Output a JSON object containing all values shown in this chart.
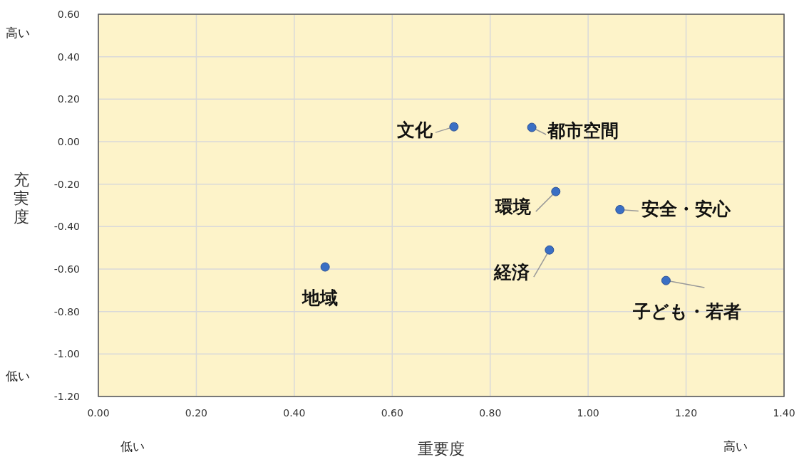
{
  "chart_data": {
    "type": "scatter",
    "xlabel": "重要度",
    "ylabel": "充実度",
    "x": [
      0.726,
      0.885,
      0.934,
      1.065,
      0.921,
      0.463,
      1.159
    ],
    "values": [
      0.07,
      0.067,
      -0.235,
      -0.32,
      -0.51,
      -0.59,
      -0.654
    ],
    "color": "#3a6fc4",
    "marker": "circle",
    "grid": true,
    "xlim": [
      0,
      1.4
    ],
    "xticks": [
      {
        "value": 0,
        "label": "0.00"
      },
      {
        "value": 0.2,
        "label": "0.20"
      },
      {
        "value": 0.4,
        "label": "0.40"
      },
      {
        "value": 0.6,
        "label": "0.60"
      },
      {
        "value": 0.8,
        "label": "0.80"
      },
      {
        "value": 1,
        "label": "1.00"
      },
      {
        "value": 1.2,
        "label": "1.20"
      },
      {
        "value": 1.4,
        "label": "1.40"
      }
    ],
    "ylim": [
      -1.2,
      0.6
    ],
    "yticks": [
      {
        "value": -1.2,
        "label": "-1.20"
      },
      {
        "value": -1,
        "label": "-1.00"
      },
      {
        "value": -0.8,
        "label": "-0.80"
      },
      {
        "value": -0.6,
        "label": "-0.60"
      },
      {
        "value": -0.4,
        "label": "-0.40"
      },
      {
        "value": -0.2,
        "label": "-0.20"
      },
      {
        "value": 0,
        "label": "0.00"
      },
      {
        "value": 0.2,
        "label": "0.20"
      },
      {
        "value": 0.4,
        "label": "0.40"
      },
      {
        "value": 0.6,
        "label": "0.60"
      }
    ],
    "annotations": [
      {
        "text": "文化",
        "x": 0.726,
        "y": 0.07
      },
      {
        "text": "都市空間",
        "x": 0.885,
        "y": 0.067
      },
      {
        "text": "環境",
        "x": 0.934,
        "y": -0.235
      },
      {
        "text": "安全・安心",
        "x": 1.065,
        "y": -0.32
      },
      {
        "text": "経済",
        "x": 0.921,
        "y": -0.51
      },
      {
        "text": "地域",
        "x": 0.463,
        "y": -0.59
      },
      {
        "text": "子ども・若者",
        "x": 1.159,
        "y": -0.654
      },
      "高い",
      "低い",
      "低い",
      "高い"
    ]
  }
}
